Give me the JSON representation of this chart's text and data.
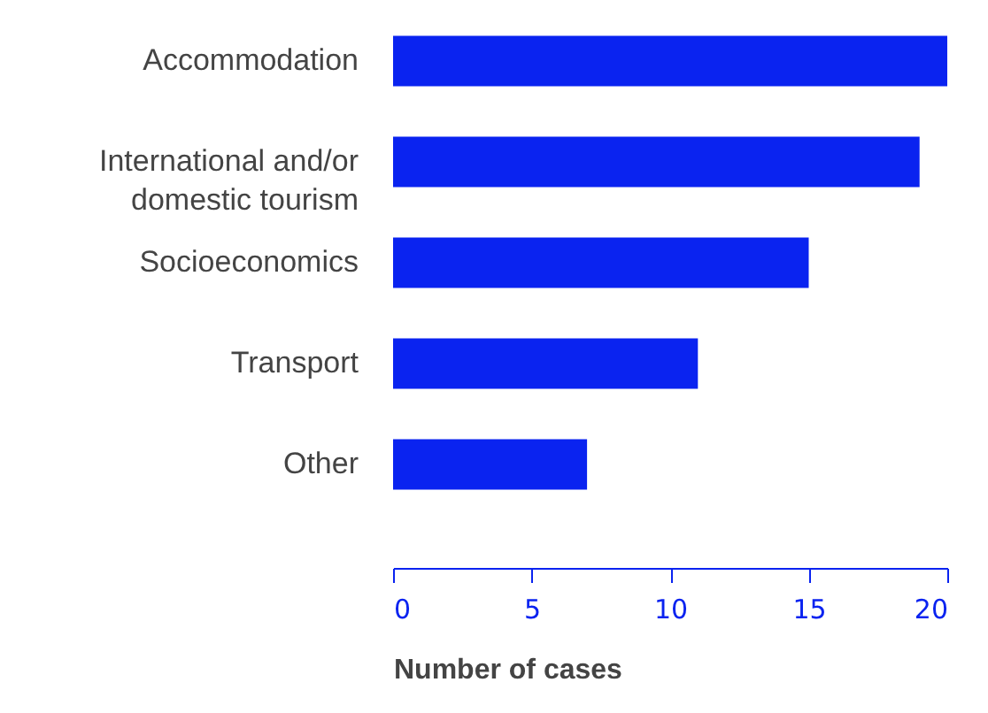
{
  "chart_data": {
    "type": "bar",
    "orientation": "horizontal",
    "categories": [
      "Accommodation",
      "International and/or\ndomestic tourism",
      "Socioeconomics",
      "Transport",
      "Other"
    ],
    "values": [
      20,
      19,
      15,
      11,
      7
    ],
    "color": "#0a23f0",
    "xlabel": "Number of cases",
    "xlim": [
      0,
      20
    ],
    "xticks": [
      0,
      5,
      10,
      15,
      20
    ],
    "grid": false
  }
}
